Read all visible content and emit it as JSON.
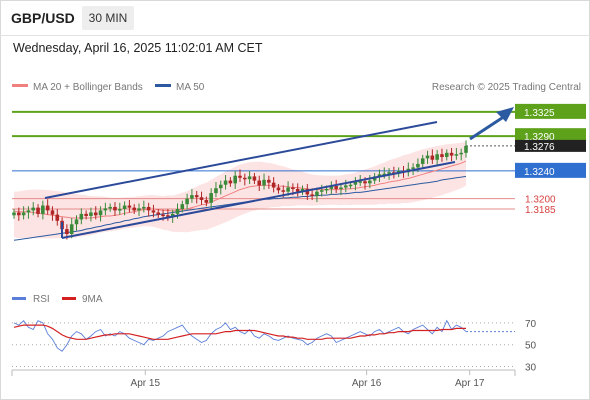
{
  "header": {
    "symbol": "GBP/USD",
    "timeframe": "30 MIN"
  },
  "datetime": "Wednesday, April 16, 2025 11:02:01 AM CET",
  "legend": {
    "bollinger_label": "MA 20 + Bollinger Bands",
    "ma50_label": "MA 50",
    "credit": "Research © 2025 Trading Central"
  },
  "rsi_legend": {
    "rsi_label": "RSI",
    "ma_label": "9MA"
  },
  "colors": {
    "candle_up": "#3a8a3a",
    "candle_down": "#b02525",
    "ma20": "#f08080",
    "bollinger_fill": "#fde4e4",
    "ma50": "#2c5aa0",
    "trendline": "#2c4a9a",
    "resistance": "#5ea21c",
    "pivot": "#2e6fd0",
    "support": "#e58b8b",
    "rsi": "#5b7fd8",
    "rsi_ma": "#d42020"
  },
  "chart_data": [
    {
      "type": "candlestick",
      "title": "GBP/USD 30 MIN",
      "x_ticks": [
        "Apr 15",
        "Apr 16",
        "Apr 17"
      ],
      "ylim": [
        1.31,
        1.3345
      ],
      "levels": [
        {
          "value": "1.3325",
          "kind": "resistance"
        },
        {
          "value": "1.3290",
          "kind": "resistance"
        },
        {
          "value": "1.3276",
          "kind": "last"
        },
        {
          "value": "1.3240",
          "kind": "pivot"
        },
        {
          "value": "1.3200",
          "kind": "support"
        },
        {
          "value": "1.3185",
          "kind": "support"
        }
      ],
      "closes": [
        1.318,
        1.3176,
        1.318,
        1.3183,
        1.3187,
        1.3178,
        1.319,
        1.3183,
        1.3177,
        1.3168,
        1.3156,
        1.3149,
        1.3163,
        1.317,
        1.3178,
        1.3175,
        1.318,
        1.3176,
        1.3183,
        1.3186,
        1.3188,
        1.3183,
        1.3185,
        1.319,
        1.3187,
        1.3183,
        1.3186,
        1.3188,
        1.3183,
        1.318,
        1.3177,
        1.3176,
        1.3174,
        1.3178,
        1.3185,
        1.3192,
        1.32,
        1.3205,
        1.3202,
        1.3198,
        1.3194,
        1.3208,
        1.3215,
        1.322,
        1.3226,
        1.3222,
        1.3233,
        1.323,
        1.3228,
        1.3232,
        1.3226,
        1.3219,
        1.3227,
        1.3223,
        1.3216,
        1.3212,
        1.321,
        1.3216,
        1.3214,
        1.321,
        1.3214,
        1.3206,
        1.3204,
        1.321,
        1.3212,
        1.3214,
        1.3218,
        1.3214,
        1.3216,
        1.3219,
        1.322,
        1.3224,
        1.3225,
        1.3222,
        1.3226,
        1.3232,
        1.3235,
        1.3236,
        1.3238,
        1.3236,
        1.324,
        1.3238,
        1.3243,
        1.3245,
        1.325,
        1.3258,
        1.3262,
        1.3256,
        1.3264,
        1.326,
        1.3266,
        1.3262,
        1.3264,
        1.3266,
        1.3276
      ],
      "ma20": [
        1.3182,
        1.3181,
        1.3181,
        1.3181,
        1.318,
        1.3179,
        1.3178,
        1.3177,
        1.3176,
        1.3175,
        1.3174,
        1.3173,
        1.3172,
        1.3172,
        1.3172,
        1.3172,
        1.3172,
        1.3173,
        1.3174,
        1.3175,
        1.3175,
        1.3176,
        1.3177,
        1.3179,
        1.318,
        1.3181,
        1.3183,
        1.3184,
        1.3185,
        1.3185,
        1.3184,
        1.3183,
        1.3183,
        1.3182,
        1.3183,
        1.3184,
        1.3185,
        1.3187,
        1.3189,
        1.3191,
        1.3192,
        1.3195,
        1.3198,
        1.3201,
        1.3204,
        1.3207,
        1.321,
        1.3213,
        1.3215,
        1.3217,
        1.3218,
        1.3219,
        1.3219,
        1.3219,
        1.3219,
        1.3218,
        1.3218,
        1.3217,
        1.3216,
        1.3216,
        1.3215,
        1.3214,
        1.3213,
        1.3213,
        1.3213,
        1.3213,
        1.3213,
        1.3213,
        1.3213,
        1.3214,
        1.3214,
        1.3215,
        1.3216,
        1.3217,
        1.3218,
        1.3219,
        1.3221,
        1.3222,
        1.3224,
        1.3225,
        1.3226,
        1.3228,
        1.3229,
        1.3231,
        1.3233,
        1.3235,
        1.3237,
        1.3239,
        1.3241,
        1.3243,
        1.3245,
        1.3247,
        1.3249,
        1.3251,
        1.3254
      ],
      "ma50": [
        1.314,
        1.3141,
        1.3142,
        1.3143,
        1.3144,
        1.3145,
        1.3146,
        1.3147,
        1.3148,
        1.3149,
        1.315,
        1.3151,
        1.3152,
        1.3153,
        1.3154,
        1.3156,
        1.3157,
        1.3159,
        1.316,
        1.3162,
        1.3163,
        1.3165,
        1.3166,
        1.3168,
        1.3169,
        1.3171,
        1.3172,
        1.3174,
        1.3175,
        1.3176,
        1.3177,
        1.3178,
        1.3179,
        1.318,
        1.3181,
        1.3182,
        1.3183,
        1.3184,
        1.3185,
        1.3186,
        1.3187,
        1.3188,
        1.3189,
        1.319,
        1.3191,
        1.3192,
        1.3193,
        1.3194,
        1.3195,
        1.3196,
        1.3197,
        1.3198,
        1.3199,
        1.3199,
        1.32,
        1.32,
        1.3201,
        1.3201,
        1.3202,
        1.3202,
        1.3203,
        1.3203,
        1.3204,
        1.3204,
        1.3205,
        1.3205,
        1.3206,
        1.3206,
        1.3207,
        1.3207,
        1.3208,
        1.3209,
        1.3209,
        1.321,
        1.3211,
        1.3212,
        1.3213,
        1.3214,
        1.3215,
        1.3216,
        1.3217,
        1.3218,
        1.3219,
        1.322,
        1.3221,
        1.3222,
        1.3223,
        1.3224,
        1.3225,
        1.3227,
        1.3228,
        1.3229,
        1.323,
        1.3231,
        1.3232
      ]
    },
    {
      "type": "line",
      "title": "RSI",
      "yticks": [
        70,
        50,
        30
      ],
      "ylim": [
        25,
        80
      ],
      "series": [
        {
          "name": "RSI",
          "values": [
            70,
            68,
            72,
            66,
            64,
            72,
            70,
            60,
            55,
            47,
            44,
            50,
            58,
            62,
            60,
            55,
            58,
            62,
            64,
            58,
            60,
            58,
            62,
            60,
            56,
            54,
            52,
            50,
            55,
            54,
            56,
            58,
            62,
            64,
            66,
            68,
            62,
            58,
            55,
            52,
            54,
            60,
            64,
            66,
            70,
            64,
            66,
            62,
            60,
            64,
            58,
            56,
            60,
            58,
            55,
            54,
            56,
            58,
            56,
            55,
            54,
            50,
            52,
            56,
            58,
            60,
            58,
            52,
            54,
            56,
            58,
            60,
            62,
            60,
            58,
            62,
            64,
            60,
            62,
            64,
            66,
            62,
            60,
            64,
            66,
            68,
            64,
            60,
            66,
            62,
            72,
            64,
            68,
            66,
            62
          ]
        },
        {
          "name": "9MA",
          "values": [
            66,
            67,
            68,
            68,
            68,
            68,
            68,
            67,
            65,
            62,
            59,
            57,
            56,
            55,
            55,
            55,
            56,
            57,
            58,
            59,
            59,
            60,
            60,
            60,
            60,
            59,
            58,
            57,
            56,
            55,
            55,
            55,
            55,
            56,
            57,
            58,
            59,
            60,
            60,
            60,
            60,
            60,
            60,
            61,
            62,
            62,
            63,
            63,
            63,
            63,
            63,
            62,
            61,
            60,
            59,
            58,
            58,
            57,
            57,
            56,
            56,
            55,
            55,
            55,
            55,
            56,
            56,
            56,
            56,
            56,
            56,
            57,
            58,
            58,
            59,
            59,
            60,
            60,
            61,
            61,
            62,
            62,
            62,
            63,
            63,
            63,
            63,
            63,
            63,
            64,
            64,
            64,
            65,
            65,
            65
          ]
        }
      ]
    }
  ]
}
